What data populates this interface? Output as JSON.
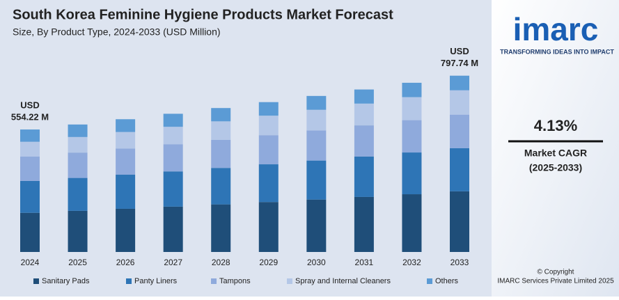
{
  "chart_data": {
    "type": "stacked_bar",
    "title": "South Korea Feminine Hygiene Products Market Forecast",
    "subtitle": "Size, By Product Type, 2024-2033 (USD Million)",
    "categories": [
      "2024",
      "2025",
      "2026",
      "2027",
      "2028",
      "2029",
      "2030",
      "2031",
      "2032",
      "2033"
    ],
    "series": [
      {
        "name": "Sanitary Pads",
        "color": "#1f4e79",
        "values": [
          177.3,
          186.1,
          195.4,
          205.1,
          215.3,
          226.0,
          237.2,
          249.0,
          261.3,
          274.4
        ]
      },
      {
        "name": "Panty Liners",
        "color": "#2e75b6",
        "values": [
          144.1,
          149.0,
          154.2,
          159.5,
          165.0,
          170.7,
          176.5,
          182.6,
          188.9,
          195.5
        ]
      },
      {
        "name": "Tampons",
        "color": "#8faadc",
        "values": [
          110.8,
          114.7,
          118.8,
          123.0,
          127.4,
          131.8,
          136.5,
          141.3,
          146.3,
          151.6
        ]
      },
      {
        "name": "Spray and Internal Cleaners",
        "color": "#b4c7e7",
        "values": [
          66.5,
          70.4,
          74.5,
          78.8,
          83.4,
          88.2,
          93.2,
          98.5,
          104.1,
          110.1
        ]
      },
      {
        "name": "Others",
        "color": "#5b9bd5",
        "values": [
          55.5,
          56.6,
          57.8,
          59.0,
          60.2,
          61.4,
          62.6,
          63.8,
          65.0,
          66.1
        ]
      }
    ],
    "ylim": [
      0,
      800
    ],
    "annotations": [
      {
        "x": "2024",
        "value": 554.22,
        "label": [
          "USD",
          "554.22 M"
        ]
      },
      {
        "x": "2033",
        "value": 797.74,
        "label": [
          "USD",
          "797.74 M"
        ]
      }
    ]
  },
  "side_panel": {
    "logo": "imarc",
    "tagline": "TRANSFORMING IDEAS INTO IMPACT",
    "cagr_value": "4.13%",
    "cagr_label": "Market CAGR",
    "cagr_period": "(2025-2033)",
    "copyright": "© Copyright",
    "copyright_holder": "IMARC Services Private Limited 2025"
  }
}
